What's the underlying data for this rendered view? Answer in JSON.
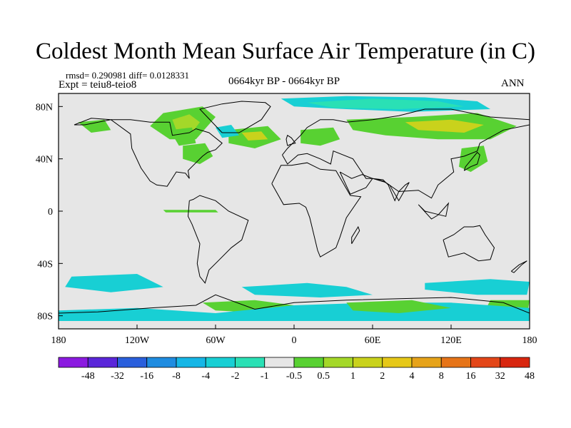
{
  "title": "Coldest Month Mean Surface Air Temperature (in C)",
  "stats_line": "rmsd= 0.290981 diff= 0.0128331",
  "experiment_line": "Expt = teiu8-teio8",
  "period": "0664kyr BP - 0664kyr BP",
  "season": "ANN",
  "colors": {
    "background": "#ffffff",
    "ocean_neutral": "#e6e6e6",
    "coastline": "#000000"
  },
  "chart_data": {
    "type": "filled-contour-map",
    "projection": "cylindrical-equidistant",
    "lon_range": [
      -180,
      180
    ],
    "lat_range": [
      -90,
      90
    ],
    "x_ticks": [
      {
        "lon": -180,
        "label": "180"
      },
      {
        "lon": -120,
        "label": "120W"
      },
      {
        "lon": -60,
        "label": "60W"
      },
      {
        "lon": 0,
        "label": "0"
      },
      {
        "lon": 60,
        "label": "60E"
      },
      {
        "lon": 120,
        "label": "120E"
      },
      {
        "lon": 180,
        "label": "180"
      }
    ],
    "y_ticks": [
      {
        "lat": 80,
        "label": "80N"
      },
      {
        "lat": 40,
        "label": "40N"
      },
      {
        "lat": 0,
        "label": "0"
      },
      {
        "lat": -40,
        "label": "40S"
      },
      {
        "lat": -80,
        "label": "80S"
      }
    ],
    "colorbar": {
      "boxes": [
        "#8b1ae0",
        "#5a26d9",
        "#2a5fdc",
        "#1f8ce0",
        "#16b6e6",
        "#18cfd4",
        "#2ae0b5",
        "#e6e6e6",
        "#58d132",
        "#a4d829",
        "#c9d21c",
        "#e6c818",
        "#e6a31a",
        "#e67418",
        "#e34618",
        "#d8260f"
      ],
      "labels": [
        "-48",
        "-32",
        "-16",
        "-8",
        "-4",
        "-2",
        "-1",
        "-0.5",
        "0.5",
        "1",
        "2",
        "4",
        "8",
        "16",
        "32",
        "48"
      ]
    },
    "anomaly_regions": [
      {
        "name": "canada-arctic",
        "color": "#58d132",
        "lon": [
          -100,
          -70,
          -60,
          -75,
          -95,
          -110
        ],
        "lat": [
          75,
          80,
          72,
          55,
          55,
          65
        ]
      },
      {
        "name": "canada-arctic-core",
        "color": "#a4d829",
        "lon": [
          -93,
          -80,
          -72,
          -78,
          -90
        ],
        "lat": [
          70,
          74,
          68,
          60,
          62
        ]
      },
      {
        "name": "hudson-bay",
        "color": "#58d132",
        "lon": [
          -95,
          -78,
          -75,
          -88
        ],
        "lat": [
          62,
          64,
          52,
          50
        ]
      },
      {
        "name": "eastern-us",
        "color": "#58d132",
        "lon": [
          -85,
          -68,
          -62,
          -72,
          -85
        ],
        "lat": [
          50,
          52,
          42,
          36,
          40
        ]
      },
      {
        "name": "alaska",
        "color": "#58d132",
        "lon": [
          -165,
          -145,
          -140,
          -155
        ],
        "lat": [
          68,
          70,
          62,
          60
        ]
      },
      {
        "name": "north-atlantic",
        "color": "#58d132",
        "lon": [
          -50,
          -20,
          -10,
          -30,
          -50
        ],
        "lat": [
          62,
          65,
          55,
          48,
          52
        ]
      },
      {
        "name": "north-atlantic-core",
        "color": "#c9d21c",
        "lon": [
          -40,
          -25,
          -20,
          -35
        ],
        "lat": [
          60,
          61,
          55,
          54
        ]
      },
      {
        "name": "labrador",
        "color": "#18cfd4",
        "lon": [
          -60,
          -48,
          -42,
          -55
        ],
        "lat": [
          64,
          66,
          58,
          56
        ]
      },
      {
        "name": "arctic-ocean",
        "color": "#18cfd4",
        "lon": [
          -10,
          40,
          100,
          140,
          150,
          90,
          40,
          0
        ],
        "lat": [
          86,
          88,
          87,
          84,
          78,
          76,
          78,
          80
        ]
      },
      {
        "name": "arctic-ocean-inner",
        "color": "#2ae0b5",
        "lon": [
          10,
          60,
          110,
          130,
          80,
          30
        ],
        "lat": [
          83,
          86,
          84,
          80,
          78,
          79
        ]
      },
      {
        "name": "siberia",
        "color": "#58d132",
        "lon": [
          40,
          90,
          140,
          170,
          150,
          110,
          70,
          45
        ],
        "lat": [
          70,
          72,
          75,
          65,
          55,
          55,
          58,
          62
        ]
      },
      {
        "name": "siberia-core",
        "color": "#c9d21c",
        "lon": [
          85,
          120,
          145,
          130,
          95
        ],
        "lat": [
          68,
          70,
          66,
          60,
          62
        ]
      },
      {
        "name": "europe",
        "color": "#58d132",
        "lon": [
          5,
          30,
          35,
          20,
          5
        ],
        "lat": [
          62,
          64,
          55,
          50,
          52
        ]
      },
      {
        "name": "japan",
        "color": "#58d132",
        "lon": [
          128,
          145,
          148,
          135,
          126
        ],
        "lat": [
          48,
          50,
          38,
          30,
          34
        ]
      },
      {
        "name": "tropical-atlantic",
        "color": "#58d132",
        "lon": [
          -100,
          -60,
          -58,
          -98
        ],
        "lat": [
          1,
          1,
          -1,
          -1
        ]
      },
      {
        "name": "southern-ocean-pacific",
        "color": "#18cfd4",
        "lon": [
          -170,
          -120,
          -100,
          -140,
          -175
        ],
        "lat": [
          -50,
          -48,
          -58,
          -62,
          -58
        ]
      },
      {
        "name": "southern-ocean-atlantic",
        "color": "#18cfd4",
        "lon": [
          -40,
          10,
          40,
          60,
          20,
          -30
        ],
        "lat": [
          -58,
          -55,
          -58,
          -64,
          -66,
          -64
        ]
      },
      {
        "name": "southern-ocean-indian",
        "color": "#18cfd4",
        "lon": [
          100,
          150,
          180,
          178,
          140,
          100
        ],
        "lat": [
          -55,
          -52,
          -54,
          -64,
          -64,
          -60
        ]
      },
      {
        "name": "weddell",
        "color": "#58d132",
        "lon": [
          -70,
          -30,
          0,
          -20,
          -60
        ],
        "lat": [
          -70,
          -68,
          -72,
          -78,
          -76
        ]
      },
      {
        "name": "ross",
        "color": "#58d132",
        "lon": [
          150,
          180,
          178,
          145
        ],
        "lat": [
          -68,
          -68,
          -80,
          -78
        ]
      },
      {
        "name": "antarctic-coast",
        "color": "#18cfd4",
        "lon": [
          -180,
          -120,
          -60,
          0,
          60,
          120,
          180,
          180,
          -180
        ],
        "lat": [
          -76,
          -74,
          -78,
          -72,
          -70,
          -70,
          -74,
          -84,
          -84
        ]
      },
      {
        "name": "east-antarctica",
        "color": "#58d132",
        "lon": [
          40,
          90,
          120,
          80,
          45
        ],
        "lat": [
          -70,
          -68,
          -74,
          -78,
          -76
        ]
      }
    ],
    "coastlines": [
      {
        "name": "north-america",
        "lon": [
          -168,
          -155,
          -140,
          -125,
          -124,
          -117,
          -110,
          -105,
          -97,
          -90,
          -83,
          -80,
          -81,
          -77,
          -70,
          -66,
          -60,
          -55,
          -65,
          -75,
          -80,
          -93,
          -95,
          -110,
          -125,
          -140,
          -160,
          -168
        ],
        "lat": [
          66,
          71,
          70,
          59,
          48,
          33,
          23,
          20,
          19,
          30,
          29,
          25,
          31,
          35,
          42,
          45,
          47,
          52,
          60,
          63,
          60,
          58,
          68,
          68,
          70,
          70,
          66,
          66
        ]
      },
      {
        "name": "greenland",
        "lon": [
          -55,
          -42,
          -25,
          -18,
          -22,
          -40,
          -55,
          -72,
          -55
        ],
        "lat": [
          60,
          60,
          70,
          80,
          83,
          84,
          82,
          78,
          60
        ]
      },
      {
        "name": "south-america",
        "lon": [
          -80,
          -77,
          -72,
          -60,
          -50,
          -35,
          -40,
          -48,
          -58,
          -65,
          -68,
          -72,
          -74,
          -72,
          -78,
          -81,
          -80
        ],
        "lat": [
          8,
          9,
          12,
          8,
          0,
          -7,
          -22,
          -28,
          -38,
          -45,
          -55,
          -50,
          -40,
          -25,
          -10,
          -4,
          8
        ]
      },
      {
        "name": "africa",
        "lon": [
          -17,
          -10,
          -2,
          10,
          20,
          32,
          43,
          51,
          40,
          35,
          32,
          20,
          18,
          12,
          9,
          4,
          -8,
          -17
        ],
        "lat": [
          21,
          35,
          35,
          37,
          32,
          31,
          12,
          11,
          -5,
          -20,
          -28,
          -35,
          -30,
          -5,
          3,
          6,
          5,
          21
        ]
      },
      {
        "name": "eurasia",
        "lon": [
          -9,
          -5,
          3,
          10,
          20,
          28,
          30,
          45,
          55,
          60,
          70,
          80,
          95,
          105,
          110,
          122,
          120,
          130,
          140,
          142,
          160,
          180,
          180,
          150,
          120,
          100,
          80,
          60,
          40,
          30,
          20,
          10,
          5,
          -5,
          -9
        ],
        "lat": [
          43,
          36,
          43,
          44,
          40,
          36,
          46,
          40,
          25,
          25,
          22,
          15,
          16,
          10,
          20,
          30,
          40,
          42,
          46,
          52,
          62,
          66,
          70,
          72,
          78,
          78,
          73,
          70,
          68,
          70,
          70,
          64,
          58,
          48,
          43
        ]
      },
      {
        "name": "india-arabia",
        "lon": [
          35,
          43,
          55,
          60,
          68,
          73,
          80,
          88,
          85,
          80,
          77,
          72,
          68,
          60,
          52,
          44,
          35
        ],
        "lat": [
          30,
          13,
          18,
          25,
          23,
          20,
          8,
          22,
          20,
          15,
          8,
          20,
          24,
          25,
          28,
          25,
          30
        ]
      },
      {
        "name": "australia",
        "lon": [
          114,
          122,
          130,
          137,
          142,
          146,
          153,
          150,
          141,
          130,
          118,
          114
        ],
        "lat": [
          -22,
          -18,
          -12,
          -12,
          -11,
          -18,
          -28,
          -37,
          -38,
          -32,
          -35,
          -22
        ]
      },
      {
        "name": "antarctica",
        "lon": [
          -180,
          -150,
          -110,
          -75,
          -60,
          -30,
          0,
          40,
          80,
          120,
          160,
          180
        ],
        "lat": [
          -78,
          -77,
          -74,
          -72,
          -64,
          -75,
          -70,
          -68,
          -67,
          -66,
          -70,
          -78
        ]
      },
      {
        "name": "japan-isl",
        "lon": [
          130,
          135,
          140,
          142,
          140,
          131,
          130
        ],
        "lat": [
          31,
          34,
          36,
          43,
          45,
          34,
          31
        ]
      },
      {
        "name": "uk",
        "lon": [
          -5,
          -3,
          1,
          -2,
          -5,
          -6,
          -5
        ],
        "lat": [
          50,
          51,
          52,
          56,
          58,
          55,
          50
        ]
      },
      {
        "name": "madagascar",
        "lon": [
          44,
          50,
          49,
          44,
          44
        ],
        "lat": [
          -25,
          -15,
          -12,
          -20,
          -25
        ]
      },
      {
        "name": "borneo-sumatra",
        "lon": [
          95,
          105,
          110,
          118,
          116,
          108,
          100,
          95
        ],
        "lat": [
          5,
          -6,
          -3,
          6,
          -4,
          -2,
          0,
          5
        ]
      },
      {
        "name": "new-zealand",
        "lon": [
          166,
          172,
          178,
          174,
          168,
          166
        ],
        "lat": [
          -46,
          -41,
          -38,
          -41,
          -47,
          -46
        ]
      }
    ]
  }
}
